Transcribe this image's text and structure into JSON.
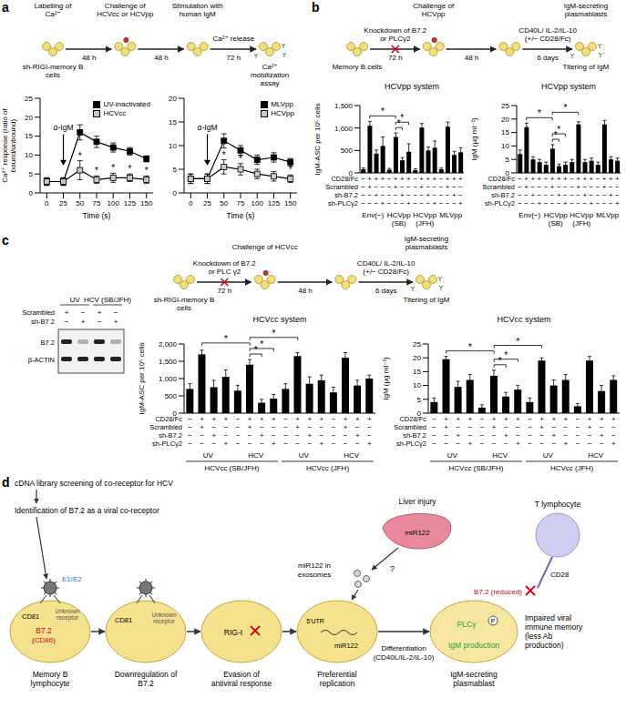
{
  "panel_letters": [
    "a",
    "b",
    "c",
    "d"
  ],
  "chart_data": [
    {
      "type": "line",
      "x_label": "Time (s)",
      "y_label": "Ca²⁺ response (ratio of bound/unbound)",
      "x": [
        0,
        25,
        50,
        75,
        100,
        125,
        150
      ],
      "xlim": [
        -10,
        160
      ],
      "xticks": [
        0,
        25,
        50,
        75,
        100,
        125,
        150
      ],
      "ylim": [
        0,
        25
      ],
      "yticks": [
        0,
        5,
        10,
        15,
        20,
        25
      ],
      "legend": "top-right",
      "series": [
        {
          "name": "UV-inactivated",
          "color": "#000000",
          "marker": "square",
          "values": [
            3,
            3,
            16,
            13.5,
            12,
            11,
            9
          ],
          "errors": [
            1,
            1,
            2,
            1.5,
            1.2,
            1,
            0.8
          ]
        },
        {
          "name": "HCVcc",
          "color": "#c8c8c8",
          "marker": "square",
          "values": [
            3,
            3,
            6,
            3.5,
            4,
            4,
            3.5
          ],
          "errors": [
            1,
            1,
            2.5,
            1,
            1.2,
            1,
            1
          ]
        }
      ],
      "annotations": [
        {
          "text": "α-IgM",
          "x": 25
        }
      ],
      "significance": {
        "label": "*",
        "x": [
          50,
          75,
          100,
          125,
          150
        ]
      }
    },
    {
      "type": "line",
      "x_label": "Time (s)",
      "x": [
        0,
        25,
        50,
        75,
        100,
        125,
        150
      ],
      "xlim": [
        -10,
        160
      ],
      "xticks": [
        0,
        25,
        50,
        75,
        100,
        125,
        150
      ],
      "ylim": [
        0,
        20
      ],
      "yticks": [
        0,
        5,
        10,
        15,
        20
      ],
      "legend": "top-right",
      "series": [
        {
          "name": "MLVpp",
          "color": "#000000",
          "marker": "square",
          "values": [
            3,
            3,
            11,
            9,
            7,
            7.5,
            6.5
          ],
          "errors": [
            1,
            1,
            1.5,
            1,
            1,
            1,
            0.8
          ]
        },
        {
          "name": "HCVpp",
          "color": "#c8c8c8",
          "marker": "square",
          "values": [
            3,
            3,
            5.5,
            5,
            4,
            3.5,
            3
          ],
          "errors": [
            1,
            1,
            1.5,
            1.2,
            1,
            1,
            0.8
          ]
        }
      ],
      "annotations": [
        {
          "text": "α-IgM",
          "x": 25
        }
      ],
      "significance": {
        "label": "*",
        "x": [
          50,
          75,
          100,
          150
        ]
      }
    },
    {
      "type": "bar",
      "title": "HCVpp system",
      "y_label": "IgM-ASC per 10⁵ cells",
      "color": "#000000",
      "ylim": [
        0,
        1500
      ],
      "yticks": [
        0,
        500,
        {
          "value": 1000,
          "label": "1,000"
        },
        {
          "value": 1500,
          "label": "1,500"
        }
      ],
      "values": [
        80,
        1050,
        430,
        600,
        70,
        800,
        280,
        470,
        60,
        1010,
        500,
        560,
        80,
        1030,
        400,
        460
      ],
      "errors": [
        30,
        100,
        80,
        200,
        30,
        90,
        60,
        180,
        30,
        90,
        80,
        150,
        30,
        100,
        80,
        100
      ],
      "conditions": [
        {
          "label": "CD28/Fc",
          "signs": [
            "−",
            "+",
            "+",
            "+",
            "−",
            "+",
            "+",
            "+",
            "−",
            "+",
            "+",
            "+",
            "−",
            "+",
            "+",
            "+"
          ]
        },
        {
          "label": "Scrambled",
          "signs": [
            "−",
            "+",
            "−",
            "−",
            "−",
            "+",
            "−",
            "−",
            "−",
            "+",
            "−",
            "−",
            "−",
            "+",
            "−",
            "−"
          ]
        },
        {
          "label": "sh-B7.2",
          "signs": [
            "−",
            "−",
            "+",
            "−",
            "−",
            "−",
            "+",
            "−",
            "−",
            "−",
            "+",
            "−",
            "−",
            "−",
            "+",
            "−"
          ]
        },
        {
          "label": "sh-PLCγ2",
          "signs": [
            "−",
            "−",
            "−",
            "+",
            "−",
            "−",
            "−",
            "+",
            "−",
            "−",
            "−",
            "+",
            "−",
            "−",
            "−",
            "+"
          ]
        }
      ],
      "groups": [
        {
          "label": "Env(−)",
          "size": 4
        },
        {
          "label": "HCVpp (SB)",
          "size": 4
        },
        {
          "label": "HCVpp (JFH)",
          "size": 4
        },
        {
          "label": "MLVpp",
          "size": 4
        }
      ],
      "significance": [
        {
          "from": 5,
          "to": 6,
          "label": "*"
        },
        {
          "from": 5,
          "to": 7,
          "label": "*"
        },
        {
          "from": 1,
          "to": 5,
          "label": "*"
        }
      ]
    },
    {
      "type": "bar",
      "title": "HCVpp system",
      "y_label": "IgM (μg ml⁻¹)",
      "color": "#000000",
      "ylim": [
        0,
        25
      ],
      "yticks": [
        0,
        5,
        10,
        15,
        20,
        25
      ],
      "values": [
        7,
        17,
        5,
        4,
        3,
        9,
        2.5,
        3,
        4,
        18,
        4,
        4.5,
        3,
        18,
        5,
        4.5
      ],
      "errors": [
        1.5,
        1.5,
        1,
        1,
        1,
        1.5,
        0.8,
        1,
        1,
        1,
        1,
        1,
        1,
        1.5,
        1,
        1
      ],
      "conditions": [
        {
          "label": "CD28/Fc",
          "signs": [
            "−",
            "+",
            "+",
            "+",
            "−",
            "+",
            "+",
            "+",
            "−",
            "+",
            "+",
            "+",
            "−",
            "+",
            "+",
            "+"
          ]
        },
        {
          "label": "Scrambled",
          "signs": [
            "−",
            "+",
            "−",
            "−",
            "−",
            "+",
            "−",
            "−",
            "−",
            "+",
            "−",
            "−",
            "−",
            "+",
            "−",
            "−"
          ]
        },
        {
          "label": "sh-B7.2",
          "signs": [
            "−",
            "−",
            "+",
            "−",
            "−",
            "−",
            "+",
            "−",
            "−",
            "−",
            "+",
            "−",
            "−",
            "−",
            "+",
            "−"
          ]
        },
        {
          "label": "sh-PLCγ2",
          "signs": [
            "−",
            "−",
            "−",
            "+",
            "−",
            "−",
            "−",
            "+",
            "−",
            "−",
            "−",
            "+",
            "−",
            "−",
            "−",
            "+"
          ]
        }
      ],
      "groups": [
        {
          "label": "Env(−)",
          "size": 4
        },
        {
          "label": "HCVpp (SB)",
          "size": 4
        },
        {
          "label": "HCVpp (JFH)",
          "size": 4
        },
        {
          "label": "MLVpp",
          "size": 4
        }
      ],
      "significance": [
        {
          "from": 5,
          "to": 6,
          "label": "*"
        },
        {
          "from": 5,
          "to": 7,
          "label": "*"
        },
        {
          "from": 1,
          "to": 5,
          "label": "*"
        },
        {
          "from": 5,
          "to": 9,
          "label": "*"
        }
      ]
    },
    {
      "type": "bar",
      "title": "HCVcc system",
      "y_label": "IgM-ASC per 10⁵ cells",
      "color": "#000000",
      "ylim": [
        0,
        2000
      ],
      "yticks": [
        0,
        500,
        {
          "value": 1000,
          "label": "1,000"
        },
        {
          "value": 1500,
          "label": "1,500"
        },
        {
          "value": 2000,
          "label": "2,000"
        }
      ],
      "values": [
        700,
        1700,
        750,
        1050,
        650,
        1400,
        300,
        420,
        700,
        1650,
        850,
        950,
        600,
        1600,
        800,
        1000
      ],
      "errors": [
        150,
        120,
        200,
        200,
        150,
        150,
        100,
        120,
        150,
        100,
        200,
        150,
        150,
        150,
        150,
        100
      ],
      "conditions": [
        {
          "label": "CD28/Fc",
          "signs": [
            "−",
            "+",
            "+",
            "+",
            "−",
            "+",
            "+",
            "+",
            "−",
            "+",
            "+",
            "+",
            "−",
            "+",
            "+",
            "+"
          ]
        },
        {
          "label": "Scrambled",
          "signs": [
            "−",
            "+",
            "−",
            "−",
            "−",
            "+",
            "−",
            "−",
            "−",
            "+",
            "−",
            "−",
            "−",
            "+",
            "−",
            "−"
          ]
        },
        {
          "label": "sh-B7.2",
          "signs": [
            "−",
            "−",
            "+",
            "−",
            "−",
            "−",
            "+",
            "−",
            "−",
            "−",
            "+",
            "−",
            "−",
            "−",
            "+",
            "−"
          ]
        },
        {
          "label": "sh-PLCγ2",
          "signs": [
            "−",
            "−",
            "−",
            "+",
            "−",
            "−",
            "−",
            "+",
            "−",
            "−",
            "−",
            "+",
            "−",
            "−",
            "−",
            "+"
          ]
        }
      ],
      "groups": [
        {
          "label": "UV",
          "size": 4
        },
        {
          "label": "HCV",
          "size": 4
        },
        {
          "label": "UV",
          "size": 4
        },
        {
          "label": "HCV",
          "size": 4
        }
      ],
      "supergroups": [
        {
          "label": "HCVcc (SB/JFH)",
          "size": 8
        },
        {
          "label": "HCVcc (JFH)",
          "size": 8
        }
      ],
      "significance": [
        {
          "from": 5,
          "to": 6,
          "label": "*"
        },
        {
          "from": 5,
          "to": 7,
          "label": "*"
        },
        {
          "from": 1,
          "to": 5,
          "label": "*"
        },
        {
          "from": 5,
          "to": 9,
          "label": "*"
        }
      ]
    },
    {
      "type": "bar",
      "title": "HCVcc system",
      "y_label": "IgM (μg ml⁻¹)",
      "color": "#000000",
      "ylim": [
        0,
        25
      ],
      "yticks": [
        0,
        5,
        10,
        15,
        20,
        25
      ],
      "values": [
        4,
        19.5,
        9.5,
        12,
        2,
        13.5,
        6,
        8.5,
        4,
        19,
        10,
        12,
        2.5,
        19,
        8,
        12
      ],
      "errors": [
        1.5,
        1,
        2,
        2,
        1,
        2,
        1.5,
        1.5,
        1.5,
        1,
        2,
        2,
        1,
        1.5,
        2,
        1.5
      ],
      "conditions": [
        {
          "label": "CD28/Fc",
          "signs": [
            "−",
            "+",
            "+",
            "+",
            "−",
            "+",
            "+",
            "+",
            "−",
            "+",
            "+",
            "+",
            "−",
            "+",
            "+",
            "+"
          ]
        },
        {
          "label": "Scrambled",
          "signs": [
            "−",
            "+",
            "−",
            "−",
            "−",
            "+",
            "−",
            "−",
            "−",
            "+",
            "−",
            "−",
            "−",
            "+",
            "−",
            "−"
          ]
        },
        {
          "label": "sh-B7.2",
          "signs": [
            "−",
            "−",
            "+",
            "−",
            "−",
            "−",
            "+",
            "−",
            "−",
            "−",
            "+",
            "−",
            "−",
            "−",
            "+",
            "−"
          ]
        },
        {
          "label": "sh-PLCγ2",
          "signs": [
            "−",
            "−",
            "−",
            "+",
            "−",
            "−",
            "−",
            "+",
            "−",
            "−",
            "−",
            "+",
            "−",
            "−",
            "−",
            "+"
          ]
        }
      ],
      "groups": [
        {
          "label": "UV",
          "size": 4
        },
        {
          "label": "HCV",
          "size": 4
        },
        {
          "label": "UV",
          "size": 4
        },
        {
          "label": "HCV",
          "size": 4
        }
      ],
      "supergroups": [
        {
          "label": "HCVcc (SB/JFH)",
          "size": 8
        },
        {
          "label": "HCVcc (JFH)",
          "size": 8
        }
      ],
      "significance": [
        {
          "from": 5,
          "to": 6,
          "label": "*"
        },
        {
          "from": 5,
          "to": 7,
          "label": "*"
        },
        {
          "from": 1,
          "to": 5,
          "label": "*"
        },
        {
          "from": 5,
          "to": 9,
          "label": "*"
        }
      ]
    }
  ],
  "schemes": {
    "a": {
      "stages": [
        {
          "above": "Labelling of Ca²⁺",
          "below": "sh-RIGI-memory B cells"
        },
        {
          "above": "Challenge of HCVcc or HCVpp"
        },
        {
          "above": "Stimulation with human IgM"
        },
        {
          "below": "Ca²⁺ mobilization assay"
        }
      ],
      "arrows": [
        {
          "below": "48 h"
        },
        {
          "below": "48 h"
        },
        {
          "above": "Ca²⁺ release",
          "below": "72 h"
        }
      ]
    },
    "b": {
      "stages": [
        {
          "below": "Memory B cells"
        },
        {
          "above": "Challenge of HCVpp"
        },
        {},
        {
          "above": "IgM-secreting plasmablasts",
          "below": "Titering of IgM"
        }
      ],
      "arrows": [
        {
          "above": "Knockdown of B7.2 or PLCγ2",
          "below": "72 h"
        },
        {
          "below": "48 h"
        },
        {
          "above": "CD40L/ IL-2/IL-10 (+/− CD28/Fc)",
          "below": "6 days"
        }
      ]
    },
    "c": {
      "stages": [
        {
          "below": "sh-RIGI-memory B cells"
        },
        {
          "above": "Challenge of HCVcc"
        },
        {},
        {
          "above": "IgM-secreting plasmablasts",
          "below": "Titering of IgM"
        }
      ],
      "arrows": [
        {
          "above": "Knockdown of B7.2 or PLC γ2",
          "below": "72 h"
        },
        {
          "below": "48 h"
        },
        {
          "above": "CD40L/ IL-2/IL-10 (+/− CD28/Fc)",
          "below": "6 days"
        }
      ]
    }
  },
  "blot": {
    "lanes": [
      {
        "label": "UV",
        "span": 2
      },
      {
        "label": "HCV (SB/JFH)",
        "span": 2
      }
    ],
    "rows": [
      {
        "label": "Scrambled",
        "signs": [
          "+",
          "−",
          "+",
          "−"
        ]
      },
      {
        "label": "sh-B7.2",
        "signs": [
          "−",
          "+",
          "−",
          "+"
        ]
      }
    ],
    "bands": [
      "B7.2",
      "β-ACTIN"
    ]
  },
  "diagram": {
    "screening": "cDNA library screening of co-receptor for HCV",
    "identification": "Identification of B7.2 as a viral co-receptor",
    "cells": [
      "Memory B lymphocyte",
      "Downregulation of B7.2",
      "Evasion of antiviral response",
      "Preferential replication",
      "IgM-secreting plasmablast"
    ],
    "e1e2": "E1/E2",
    "cd81": "CD81",
    "b72": "B7.2",
    "cd86": "(CD86)",
    "unknown_receptor": "Unknown receptor",
    "rigi": "RIG-I",
    "utr": "5'UTR",
    "mir122": "miR122",
    "exosomes": "miR122 in exosomes",
    "question": "?",
    "liver": "Liver injury",
    "differentiation": "Differentiation (CD40L/IL-2/IL-10)",
    "t_cell": "T lymphocyte",
    "cd28": "CD28",
    "b72_reduced": "B7.2 (reduced)",
    "plc": "PLCγ",
    "p": "P",
    "igm": "IgM production",
    "outcome": "Impaired viral immune memory (less Ab production)"
  }
}
